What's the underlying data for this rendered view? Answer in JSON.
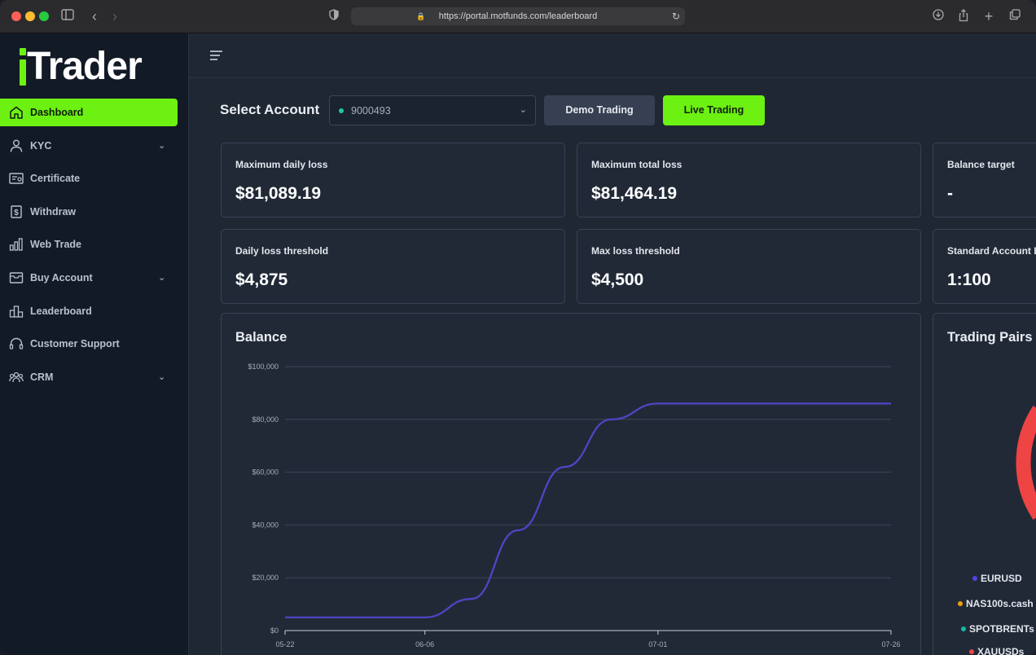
{
  "browser": {
    "url": "https://portal.motfunds.com/leaderboard",
    "icons": [
      "sidebar-toggle-icon",
      "back-icon",
      "forward-icon",
      "shield-icon",
      "lock-icon",
      "reload-icon",
      "download-icon",
      "share-icon",
      "new-tab-icon",
      "tabs-icon"
    ]
  },
  "sidebar": {
    "logo": "Trader",
    "items": [
      {
        "label": "Dashboard",
        "icon": "home-icon",
        "active": true,
        "expandable": false
      },
      {
        "label": "KYC",
        "icon": "user-icon",
        "active": false,
        "expandable": true
      },
      {
        "label": "Certificate",
        "icon": "certificate-icon",
        "active": false,
        "expandable": false
      },
      {
        "label": "Withdraw",
        "icon": "dollar-icon",
        "active": false,
        "expandable": false
      },
      {
        "label": "Web Trade",
        "icon": "bar-chart-icon",
        "active": false,
        "expandable": false
      },
      {
        "label": "Buy Account",
        "icon": "box-icon",
        "active": false,
        "expandable": true
      },
      {
        "label": "Leaderboard",
        "icon": "leaderboard-icon",
        "active": false,
        "expandable": false
      },
      {
        "label": "Customer Support",
        "icon": "headset-icon",
        "active": false,
        "expandable": false
      },
      {
        "label": "CRM",
        "icon": "users-icon",
        "active": false,
        "expandable": true
      }
    ]
  },
  "account": {
    "label": "Select Account",
    "selected": "9000493",
    "status_color": "#1ec9a0",
    "demo_label": "Demo Trading",
    "live_label": "Live Trading"
  },
  "stats": [
    {
      "label": "Maximum daily loss",
      "value": "$81,089.19"
    },
    {
      "label": "Maximum total loss",
      "value": "$81,464.19"
    },
    {
      "label": "Balance target",
      "value": "-"
    },
    {
      "label": "Daily loss threshold",
      "value": "$4,875"
    },
    {
      "label": "Max loss threshold",
      "value": "$4,500"
    },
    {
      "label": "Standard Account L",
      "value": "1:100"
    }
  ],
  "balance_card": {
    "title": "Balance"
  },
  "pairs_card": {
    "title": "Trading Pairs"
  },
  "colors": {
    "accent": "#6cf112",
    "line": "#4f46c9",
    "eurusd": "#4f46e5",
    "nas": "#f59e0b",
    "brent": "#14b8a6",
    "xau": "#ef4444"
  },
  "chart_data": [
    {
      "type": "line",
      "title": "Balance",
      "xlabel": "",
      "ylabel": "",
      "x_ticks": [
        "05-22",
        "06-06",
        "07-01",
        "07-26"
      ],
      "y_ticks": [
        "$0",
        "$20,000",
        "$40,000",
        "$60,000",
        "$80,000",
        "$100,000"
      ],
      "ylim": [
        0,
        100000
      ],
      "grid": true,
      "series": [
        {
          "x": [
            "05-22",
            "06-06",
            "06-11",
            "06-16",
            "06-21",
            "06-26",
            "07-01",
            "07-26"
          ],
          "values": [
            5000,
            5000,
            12000,
            38000,
            62000,
            80000,
            86000,
            86000
          ]
        }
      ]
    },
    {
      "type": "pie",
      "title": "Trading Pairs",
      "categories": [
        "EURUSD",
        "NAS100s.cash",
        "SPOTBRENTs",
        "XAUUSDs"
      ],
      "legend": "bottom",
      "colors": [
        "#4f46e5",
        "#f59e0b",
        "#14b8a6",
        "#ef4444"
      ]
    }
  ]
}
